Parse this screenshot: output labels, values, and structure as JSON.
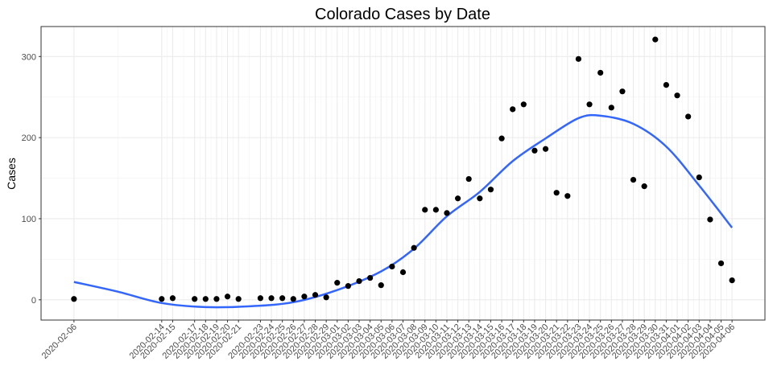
{
  "chart_data": {
    "type": "scatter",
    "title": "Colorado Cases by Date",
    "xlabel": "",
    "ylabel": "Cases",
    "x_type": "date",
    "ylim": [
      -25,
      337
    ],
    "y_ticks": [
      0,
      100,
      200,
      300
    ],
    "grid": true,
    "legend": "none",
    "colors": {
      "points": "#000000",
      "smooth": "#3366ff",
      "grid": "#ebebeb",
      "background": "#ffffff"
    },
    "x_ticks": [
      "2020-02-06",
      "2020-02-14",
      "2020-02-15",
      "2020-02-17",
      "2020-02-18",
      "2020-02-19",
      "2020-02-20",
      "2020-02-21",
      "2020-02-23",
      "2020-02-24",
      "2020-02-25",
      "2020-02-26",
      "2020-02-27",
      "2020-02-28",
      "2020-02-29",
      "2020-03-01",
      "2020-03-02",
      "2020-03-03",
      "2020-03-04",
      "2020-03-05",
      "2020-03-06",
      "2020-03-07",
      "2020-03-08",
      "2020-03-09",
      "2020-03-10",
      "2020-03-11",
      "2020-03-12",
      "2020-03-13",
      "2020-03-14",
      "2020-03-15",
      "2020-03-16",
      "2020-03-17",
      "2020-03-18",
      "2020-03-19",
      "2020-03-20",
      "2020-03-21",
      "2020-03-22",
      "2020-03-23",
      "2020-03-24",
      "2020-03-25",
      "2020-03-26",
      "2020-03-27",
      "2020-03-28",
      "2020-03-29",
      "2020-03-30",
      "2020-03-31",
      "2020-04-01",
      "2020-04-02",
      "2020-04-03",
      "2020-04-04",
      "2020-04-05",
      "2020-04-06"
    ],
    "series": [
      {
        "points": [
          [
            "2020-02-06",
            1
          ],
          [
            "2020-02-14",
            1
          ],
          [
            "2020-02-15",
            2
          ],
          [
            "2020-02-17",
            1
          ],
          [
            "2020-02-18",
            1
          ],
          [
            "2020-02-19",
            1
          ],
          [
            "2020-02-20",
            4
          ],
          [
            "2020-02-21",
            1
          ],
          [
            "2020-02-23",
            2
          ],
          [
            "2020-02-24",
            2
          ],
          [
            "2020-02-25",
            2
          ],
          [
            "2020-02-26",
            1
          ],
          [
            "2020-02-27",
            4
          ],
          [
            "2020-02-28",
            6
          ],
          [
            "2020-02-29",
            3
          ],
          [
            "2020-03-01",
            21
          ],
          [
            "2020-03-02",
            17
          ],
          [
            "2020-03-03",
            23
          ],
          [
            "2020-03-04",
            27
          ],
          [
            "2020-03-05",
            18
          ],
          [
            "2020-03-06",
            41
          ],
          [
            "2020-03-07",
            34
          ],
          [
            "2020-03-08",
            64
          ],
          [
            "2020-03-09",
            111
          ],
          [
            "2020-03-10",
            111
          ],
          [
            "2020-03-11",
            107
          ],
          [
            "2020-03-12",
            125
          ],
          [
            "2020-03-13",
            149
          ],
          [
            "2020-03-14",
            125
          ],
          [
            "2020-03-15",
            136
          ],
          [
            "2020-03-16",
            199
          ],
          [
            "2020-03-17",
            235
          ],
          [
            "2020-03-18",
            241
          ],
          [
            "2020-03-19",
            184
          ],
          [
            "2020-03-20",
            186
          ],
          [
            "2020-03-21",
            132
          ],
          [
            "2020-03-22",
            128
          ],
          [
            "2020-03-23",
            297
          ],
          [
            "2020-03-24",
            241
          ],
          [
            "2020-03-25",
            280
          ],
          [
            "2020-03-26",
            237
          ],
          [
            "2020-03-27",
            257
          ],
          [
            "2020-03-28",
            148
          ],
          [
            "2020-03-29",
            140
          ],
          [
            "2020-03-30",
            321
          ],
          [
            "2020-03-31",
            265
          ],
          [
            "2020-04-01",
            252
          ],
          [
            "2020-04-02",
            226
          ],
          [
            "2020-04-03",
            151
          ],
          [
            "2020-04-04",
            99
          ],
          [
            "2020-04-05",
            45
          ],
          [
            "2020-04-06",
            24
          ]
        ]
      }
    ],
    "smooth_line": [
      [
        "2020-02-06",
        22
      ],
      [
        "2020-02-10",
        10
      ],
      [
        "2020-02-14",
        -4
      ],
      [
        "2020-02-18",
        -9
      ],
      [
        "2020-02-22",
        -8
      ],
      [
        "2020-02-26",
        -3
      ],
      [
        "2020-03-01",
        12
      ],
      [
        "2020-03-05",
        35
      ],
      [
        "2020-03-08",
        63
      ],
      [
        "2020-03-11",
        103
      ],
      [
        "2020-03-14",
        133
      ],
      [
        "2020-03-17",
        171
      ],
      [
        "2020-03-20",
        199
      ],
      [
        "2020-03-23",
        224
      ],
      [
        "2020-03-25",
        227
      ],
      [
        "2020-03-28",
        217
      ],
      [
        "2020-03-31",
        189
      ],
      [
        "2020-04-03",
        141
      ],
      [
        "2020-04-06",
        89
      ]
    ]
  }
}
